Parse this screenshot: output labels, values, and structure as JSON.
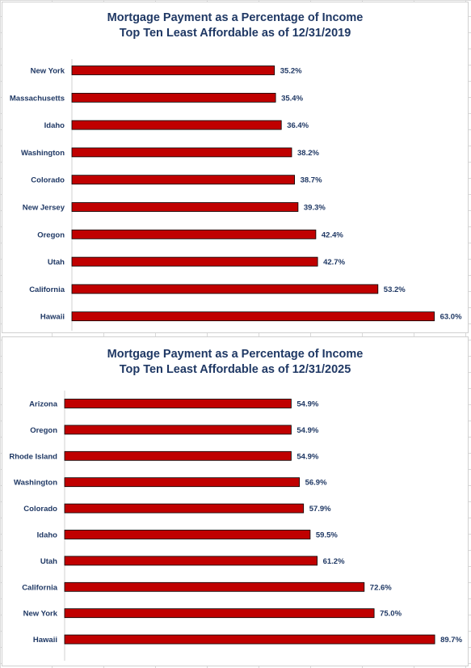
{
  "chart_data": [
    {
      "type": "bar",
      "orientation": "horizontal",
      "title": "Mortgage Payment as a Percentage of Income",
      "subtitle": "Top Ten Least Affordable as of 12/31/2019",
      "categories": [
        "New York",
        "Massachusetts",
        "Idaho",
        "Washington",
        "Colorado",
        "New Jersey",
        "Oregon",
        "Utah",
        "California",
        "Hawaii"
      ],
      "values": [
        35.2,
        35.4,
        36.4,
        38.2,
        38.7,
        39.3,
        42.4,
        42.7,
        53.2,
        63.0
      ],
      "data_labels": [
        "35.2%",
        "35.4%",
        "36.4%",
        "38.2%",
        "38.7%",
        "39.3%",
        "42.4%",
        "42.7%",
        "53.2%",
        "63.0%"
      ],
      "xlim": [
        0,
        66
      ],
      "grid": false,
      "bar_color": "#c00000"
    },
    {
      "type": "bar",
      "orientation": "horizontal",
      "title": "Mortgage Payment as a Percentage of Income",
      "subtitle": "Top Ten Least Affordable as of 12/31/2025",
      "categories": [
        "Arizona",
        "Oregon",
        "Rhode Island",
        "Washington",
        "Colorado",
        "Idaho",
        "Utah",
        "California",
        "New York",
        "Hawaii"
      ],
      "values": [
        54.9,
        54.9,
        54.9,
        56.9,
        57.9,
        59.5,
        61.2,
        72.6,
        75.0,
        89.7
      ],
      "data_labels": [
        "54.9%",
        "54.9%",
        "54.9%",
        "56.9%",
        "57.9%",
        "59.5%",
        "61.2%",
        "72.6%",
        "75.0%",
        "89.7%"
      ],
      "xlim": [
        0,
        93
      ],
      "grid": false,
      "bar_color": "#c00000"
    }
  ]
}
